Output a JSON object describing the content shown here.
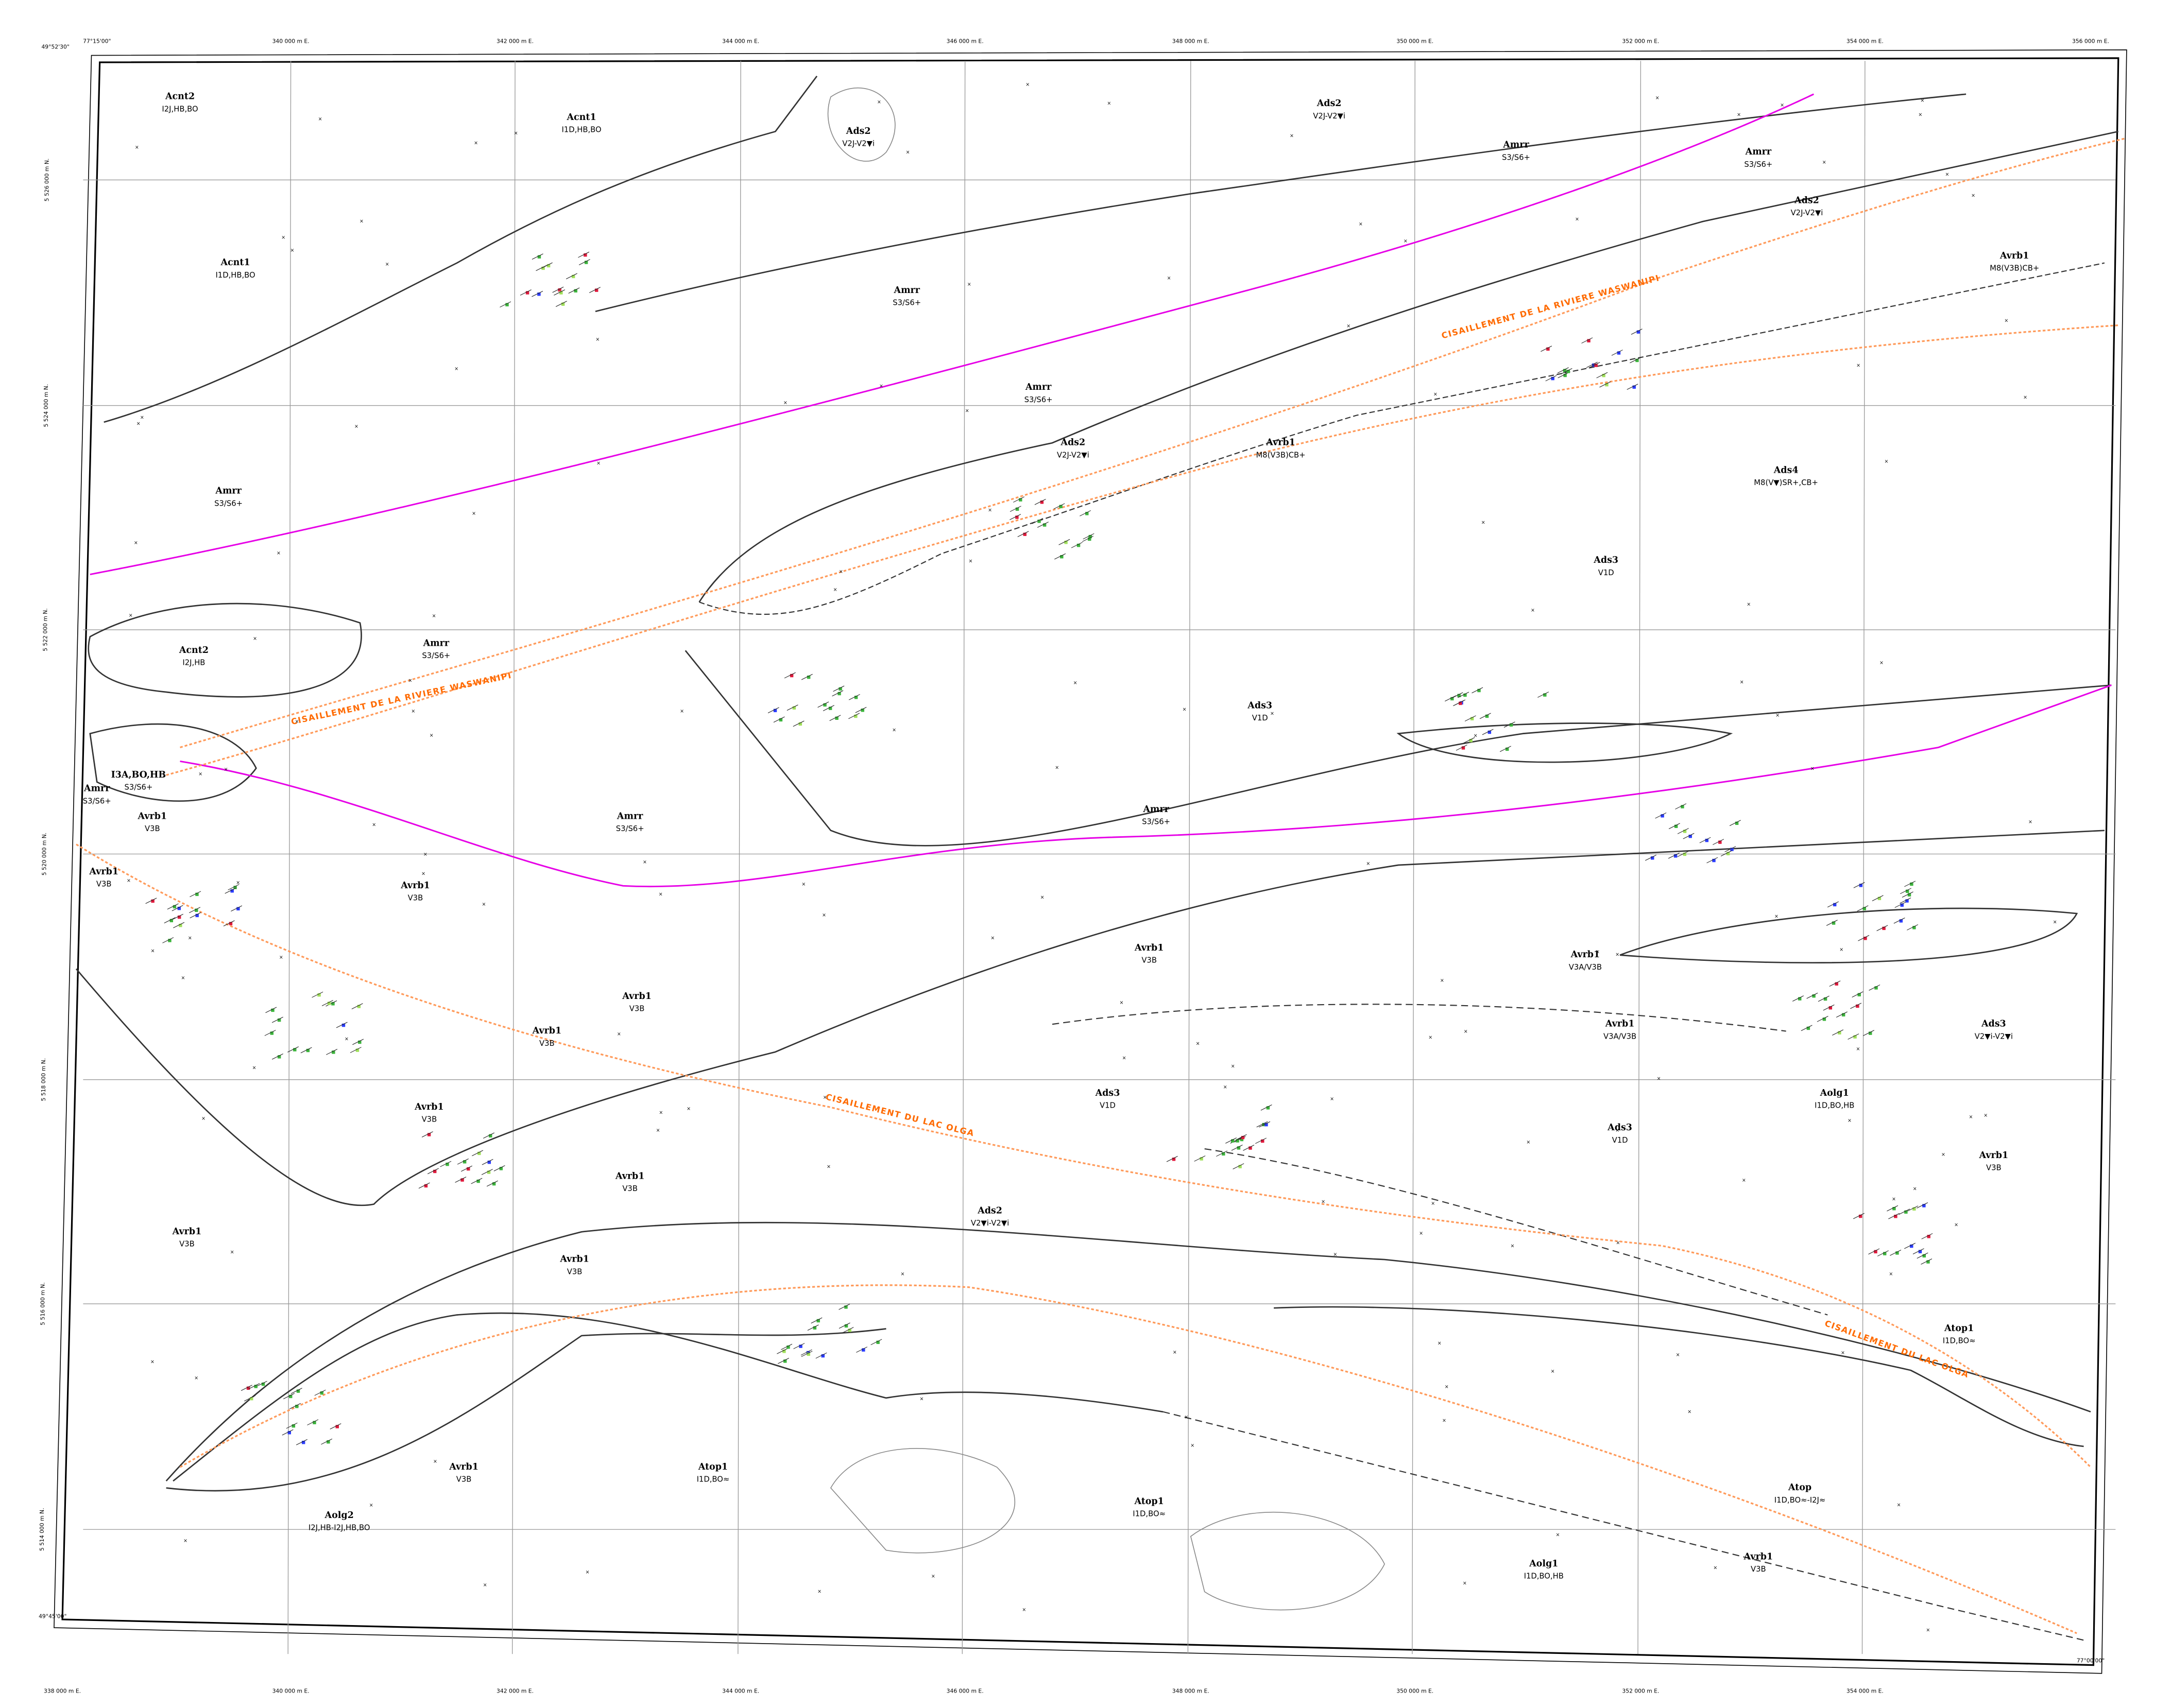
{
  "map": {
    "easting_top": [
      "340 000 m E.",
      "342 000 m E.",
      "344 000 m E.",
      "346 000 m E.",
      "348 000 m E.",
      "350 000 m E.",
      "352 000 m E.",
      "354 000 m E.",
      "356 000 m E."
    ],
    "easting_bottom": [
      "338 000 m E.",
      "340 000 m E.",
      "342 000 m E.",
      "344 000 m E.",
      "346 000 m E.",
      "348 000 m E.",
      "350 000 m E.",
      "352 000 m E.",
      "354 000 m E."
    ],
    "northing_left": [
      "5 526 000 m N.",
      "5 524 000 m N.",
      "5 522 000 m N.",
      "5 520 000 m N.",
      "5 518 000 m N.",
      "5 516 000 m N.",
      "5 514 000 m N."
    ],
    "corners": [
      "49°52'30\"",
      "77°15'00\"",
      "77°00'00\"",
      "49°45'00\""
    ],
    "shear_zones": [
      "CISAILLEMENT DE LA RIVIERE WASWANIPI",
      "CISAILLEMENT DE LA RIVIERE WASWANIPI",
      "CISAILLEMENT DU LAC OLGA",
      "CISAILLEMENT DU LAC OLGA"
    ],
    "units": [
      {
        "code": "Acnt2",
        "lithology": "I2J,HB,BO"
      },
      {
        "code": "Acnt1",
        "lithology": "I1D,HB,BO"
      },
      {
        "code": "Ads2",
        "lithology": "V2J-V2▼i"
      },
      {
        "code": "Ads2",
        "lithology": "V2J-V2▼i"
      },
      {
        "code": "Amrr",
        "lithology": "S3/S6+"
      },
      {
        "code": "Amrr",
        "lithology": "S3/S6+"
      },
      {
        "code": "Ads2",
        "lithology": "V2J-V2▼i"
      },
      {
        "code": "Avrb1",
        "lithology": "M8(V3B)CB+"
      },
      {
        "code": "Acnt1",
        "lithology": "I1D,HB,BO"
      },
      {
        "code": "Amrr",
        "lithology": "S3/S6+"
      },
      {
        "code": "Amrr",
        "lithology": "S3/S6+"
      },
      {
        "code": "Ads2",
        "lithology": "V2J-V2▼i"
      },
      {
        "code": "Avrb1",
        "lithology": "M8(V3B)CB+"
      },
      {
        "code": "Amrr",
        "lithology": "S3/S6+"
      },
      {
        "code": "Ads4",
        "lithology": "M8(V▼)SR+,CB+"
      },
      {
        "code": "Ads3",
        "lithology": "V1D"
      },
      {
        "code": "Acnt2",
        "lithology": "I2J,HB"
      },
      {
        "code": "Amrr",
        "lithology": "S3/S6+"
      },
      {
        "code": "Ads3",
        "lithology": "V1D"
      },
      {
        "code": "I3A,BO,HB",
        "lithology": "S3/S6+"
      },
      {
        "code": "Amrr",
        "lithology": "S3/S6+"
      },
      {
        "code": "Amrr",
        "lithology": "S3/S6+"
      },
      {
        "code": "Amrr",
        "lithology": "S3/S6+"
      },
      {
        "code": "Avrb1",
        "lithology": "V3B"
      },
      {
        "code": "Avrb1",
        "lithology": "V3B"
      },
      {
        "code": "Avrb1",
        "lithology": "V3B"
      },
      {
        "code": "Avrb1",
        "lithology": "V3B"
      },
      {
        "code": "Avrb1",
        "lithology": "V3B"
      },
      {
        "code": "Avrb1",
        "lithology": "V3B"
      },
      {
        "code": "Avrb1",
        "lithology": "V3B"
      },
      {
        "code": "Avrb1",
        "lithology": "V3A/V3B"
      },
      {
        "code": "Avrb1",
        "lithology": "V3A/V3B"
      },
      {
        "code": "Ads3",
        "lithology": "V2▼i-V2▼i"
      },
      {
        "code": "Ads3",
        "lithology": "V1D"
      },
      {
        "code": "Ads3",
        "lithology": "V1D"
      },
      {
        "code": "Avrb1",
        "lithology": "V3B"
      },
      {
        "code": "Aolg1",
        "lithology": "I1D,BO,HB"
      },
      {
        "code": "Avrb1",
        "lithology": "V3B"
      },
      {
        "code": "Avrb1",
        "lithology": "V3B"
      },
      {
        "code": "Avrb1",
        "lithology": "V3B"
      },
      {
        "code": "Ads2",
        "lithology": "V2▼i-V2▼i"
      },
      {
        "code": "Atop1",
        "lithology": "I1D,BO≈"
      },
      {
        "code": "Atop1",
        "lithology": "I1D,BO≈"
      },
      {
        "code": "Atop1",
        "lithology": "I1D,BO≈"
      },
      {
        "code": "Aolg1",
        "lithology": "I1D,BO,HB"
      },
      {
        "code": "Aolg2",
        "lithology": "I2J,HB-I2J,HB,BO"
      },
      {
        "code": "Avrb1",
        "lithology": "V3B"
      },
      {
        "code": "Atop",
        "lithology": "I1D,BO≈-I2J≈"
      },
      {
        "code": "Avrb1",
        "lithology": "V3B"
      }
    ]
  }
}
